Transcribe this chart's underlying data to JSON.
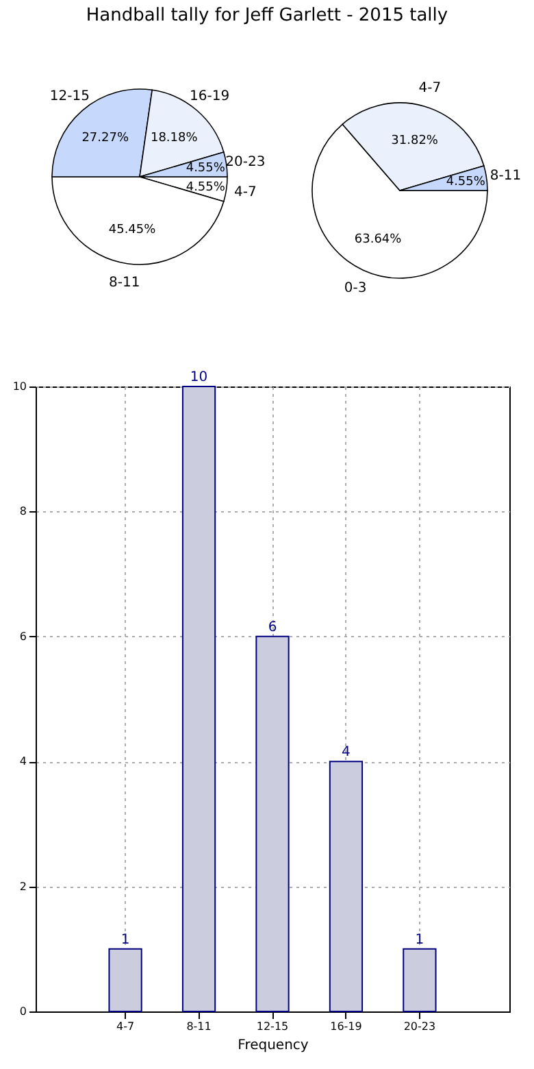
{
  "chart_data": [
    {
      "type": "pie",
      "title": "Handball tally for Jeff Garlett - 2015 tally",
      "categories": [
        "4-7",
        "8-11",
        "12-15",
        "16-19",
        "20-23"
      ],
      "values": [
        4.55,
        45.45,
        27.27,
        18.18,
        4.55
      ],
      "value_labels": [
        "4.55%",
        "45.45%",
        "27.27%",
        "18.18%",
        "4.55%"
      ],
      "colors": [
        "#ffffff",
        "#ffffff",
        "#c6d9fd",
        "#eaf1fd",
        "#c6d9fd"
      ]
    },
    {
      "type": "pie",
      "categories": [
        "0-3",
        "4-7",
        "8-11"
      ],
      "values": [
        63.64,
        31.82,
        4.55
      ],
      "value_labels": [
        "63.64%",
        "31.82%",
        "4.55%"
      ],
      "colors": [
        "#ffffff",
        "#eaf1fd",
        "#c6d9fd"
      ]
    },
    {
      "type": "bar",
      "categories": [
        "4-7",
        "8-11",
        "12-15",
        "16-19",
        "20-23"
      ],
      "values": [
        1,
        10,
        6,
        4,
        1
      ],
      "color": "#ccccdf",
      "xlabel": "Frequency",
      "ylim": [
        0,
        10
      ],
      "yticks": [
        0,
        2,
        4,
        6,
        8,
        10
      ],
      "grid": true,
      "data_labels": true
    }
  ]
}
